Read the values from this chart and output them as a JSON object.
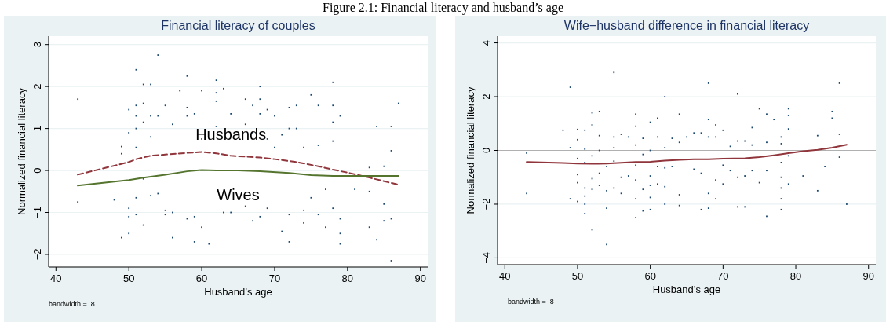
{
  "chart_data": [
    {
      "type": "line",
      "title": "Financial literacy of couples",
      "xlabel": "Husband’s age",
      "ylabel": "Normalized financial literacy",
      "annotations": [
        "Figure 2.1: Financial literacy and husband’s age",
        "bandwidth = .8"
      ],
      "xlim": [
        39,
        91
      ],
      "xticks": [
        40,
        50,
        60,
        70,
        80,
        90
      ],
      "ylim": [
        -2.3,
        3.2
      ],
      "yticks": [
        -2,
        -1,
        0,
        1,
        2,
        3
      ],
      "grid": "y",
      "series": [
        {
          "type": "scatter",
          "marker": "square",
          "color": "#1a476f",
          "x": [
            43,
            43,
            48,
            49,
            49,
            49,
            50,
            50,
            50,
            50,
            50,
            51,
            51,
            51,
            51,
            51,
            51,
            51,
            52,
            52,
            52,
            52,
            52,
            53,
            53,
            53,
            53,
            54,
            54,
            54,
            55,
            55,
            55,
            56,
            56,
            56,
            57,
            58,
            58,
            58,
            58,
            59,
            59,
            59,
            60,
            60,
            60,
            61,
            62,
            62,
            62,
            62,
            63,
            63,
            64,
            64,
            66,
            66,
            66,
            67,
            67,
            67,
            68,
            68,
            68,
            68,
            69,
            69,
            69,
            70,
            70,
            71,
            71,
            72,
            72,
            72,
            72,
            73,
            73,
            74,
            74,
            74,
            75,
            75,
            76,
            76,
            76,
            77,
            77,
            78,
            78,
            78,
            78,
            78,
            79,
            79,
            79,
            79,
            81,
            83,
            83,
            83,
            84,
            84,
            85,
            85,
            85,
            86,
            86,
            86,
            86,
            87
          ],
          "values": [
            1.7,
            -0.75,
            -0.7,
            -1.6,
            0.57,
            0.4,
            1.45,
            0.9,
            -0.9,
            -1.1,
            -1.5,
            2.4,
            1.55,
            1.3,
            1.0,
            0.55,
            -0.65,
            -1.05,
            2.05,
            1.6,
            1.15,
            -1.3,
            -0.2,
            2.05,
            1.3,
            0.8,
            -0.6,
            2.75,
            1.3,
            -0.55,
            1.55,
            -0.95,
            -1.05,
            1.1,
            -1.6,
            -1.0,
            1.9,
            2.25,
            1.5,
            1.3,
            -1.15,
            1.35,
            -1.1,
            -1.7,
            1.9,
            0.75,
            -1.35,
            -1.75,
            2.15,
            1.85,
            1.65,
            1.05,
            1.95,
            -1.0,
            1.35,
            -1.0,
            1.7,
            1.1,
            -0.85,
            1.55,
            0.9,
            -1.2,
            2.0,
            1.7,
            1.35,
            -1.1,
            1.45,
            0.75,
            -0.9,
            1.3,
            0.55,
            0.85,
            -1.45,
            1.5,
            1.0,
            -1.05,
            -1.7,
            1.55,
            1.0,
            0.55,
            -0.95,
            -1.25,
            1.8,
            -0.65,
            1.55,
            0.6,
            -1.05,
            -0.45,
            -1.35,
            2.1,
            1.55,
            1.15,
            0.7,
            -0.9,
            1.3,
            -1.15,
            -1.5,
            -1.75,
            -0.45,
            0.07,
            -0.5,
            -1.35,
            1.05,
            -1.65,
            0.1,
            -0.8,
            -1.2,
            1.05,
            0.47,
            -1.15,
            -2.15,
            1.6
          ]
        },
        {
          "type": "line",
          "name": "Husbands",
          "color": "#90353b",
          "line_style": "dashed",
          "x": [
            43,
            50,
            51,
            53,
            55,
            58,
            60,
            62,
            64,
            68,
            70,
            73,
            76,
            78,
            80,
            83,
            87
          ],
          "values": [
            -0.1,
            0.2,
            0.27,
            0.35,
            0.38,
            0.42,
            0.44,
            0.41,
            0.35,
            0.31,
            0.27,
            0.2,
            0.1,
            0.02,
            -0.05,
            -0.17,
            -0.34
          ]
        },
        {
          "type": "line",
          "name": "Wives",
          "color": "#55752f",
          "line_style": "solid",
          "x": [
            43,
            50,
            52,
            55,
            58,
            60,
            62,
            65,
            68,
            72,
            75,
            78,
            83,
            87
          ],
          "values": [
            -0.36,
            -0.23,
            -0.17,
            -0.1,
            -0.02,
            0.01,
            0.0,
            0.0,
            -0.02,
            -0.06,
            -0.11,
            -0.13,
            -0.13,
            -0.13
          ]
        }
      ]
    },
    {
      "type": "line",
      "title": "Wife−husband difference in financial literacy",
      "xlabel": "Husband’s age",
      "ylabel": "Normalized financial literacy",
      "annotations": [
        "bandwidth = .8"
      ],
      "xlim": [
        39,
        91
      ],
      "xticks": [
        40,
        50,
        60,
        70,
        80,
        90
      ],
      "ylim": [
        -4.25,
        4.25
      ],
      "yticks": [
        -4,
        -2,
        0,
        2,
        4
      ],
      "grid": "y",
      "ref_lines": [
        {
          "axis": "y",
          "value": 0,
          "color": "#b0b0b0"
        }
      ],
      "series": [
        {
          "type": "scatter",
          "marker": "square",
          "color": "#1a476f",
          "x": [
            43,
            43,
            48,
            49,
            49,
            49,
            50,
            50,
            50,
            50,
            50,
            50,
            51,
            51,
            51,
            51,
            51,
            51,
            51,
            52,
            52,
            52,
            52,
            52,
            52,
            53,
            53,
            53,
            53,
            53,
            54,
            54,
            54,
            54,
            55,
            55,
            55,
            55,
            55,
            56,
            56,
            56,
            57,
            57,
            58,
            58,
            58,
            58,
            58,
            58,
            58,
            59,
            59,
            59,
            59,
            60,
            60,
            60,
            60,
            60,
            60,
            61,
            61,
            61,
            61,
            62,
            62,
            62,
            62,
            62,
            63,
            63,
            64,
            64,
            64,
            64,
            65,
            66,
            66,
            67,
            67,
            67,
            68,
            68,
            68,
            68,
            68,
            69,
            69,
            69,
            69,
            70,
            70,
            70,
            71,
            71,
            72,
            72,
            72,
            72,
            73,
            73,
            73,
            74,
            74,
            74,
            75,
            75,
            76,
            76,
            76,
            76,
            77,
            78,
            78,
            78,
            78,
            78,
            78,
            78,
            79,
            79,
            79,
            79,
            79,
            81,
            83,
            83,
            84,
            85,
            85,
            86,
            86,
            86,
            87
          ],
          "values": [
            -0.1,
            -1.6,
            0.75,
            2.35,
            0.1,
            -1.8,
            0.78,
            0.4,
            -0.3,
            -0.9,
            -1.2,
            -1.9,
            0.75,
            0.05,
            -0.45,
            -1.4,
            -1.7,
            -2.0,
            -2.35,
            1.4,
            0.95,
            -0.2,
            -1.05,
            -1.45,
            -2.95,
            1.45,
            0.55,
            0.0,
            -0.85,
            -1.3,
            -0.6,
            -1.5,
            -2.15,
            -3.5,
            2.9,
            0.5,
            0.1,
            -0.4,
            -1.4,
            0.6,
            -1.0,
            -1.6,
            0.5,
            -0.95,
            1.35,
            0.9,
            0.2,
            -0.55,
            -1.1,
            -1.8,
            -2.5,
            0.45,
            -0.15,
            -1.45,
            -2.25,
            1.05,
            0.0,
            -0.95,
            -1.3,
            -1.75,
            -2.2,
            1.2,
            0.5,
            -0.6,
            -1.25,
            2.0,
            0.1,
            -0.65,
            -1.35,
            -2.0,
            0.45,
            -0.6,
            1.35,
            0.3,
            -1.65,
            -2.05,
            0.5,
            0.65,
            -0.7,
            0.65,
            -0.85,
            -2.2,
            2.5,
            1.15,
            0.5,
            -1.6,
            -2.15,
            0.95,
            0.5,
            -1.1,
            -1.8,
            0.75,
            -0.55,
            -1.25,
            0.15,
            -0.75,
            2.1,
            0.35,
            -1.0,
            -2.1,
            0.35,
            -0.95,
            -2.1,
            0.85,
            0.2,
            -0.75,
            1.55,
            -1.2,
            1.35,
            0.3,
            -0.75,
            -2.45,
            1.15,
            0.5,
            0.25,
            -0.45,
            -1.0,
            -1.4,
            -1.8,
            -2.2,
            1.55,
            1.3,
            0.8,
            -0.2,
            -1.25,
            -0.95,
            0.55,
            -1.5,
            -0.6,
            1.45,
            1.2,
            2.5,
            0.6,
            -0.25,
            -2.0
          ]
        },
        {
          "type": "line",
          "color": "#90353b",
          "line_style": "solid",
          "x": [
            43,
            48,
            50,
            52,
            54,
            56,
            58,
            60,
            62,
            64,
            66,
            68,
            70,
            73,
            75,
            77,
            79,
            81,
            83,
            85,
            87
          ],
          "values": [
            -0.43,
            -0.47,
            -0.49,
            -0.5,
            -0.49,
            -0.46,
            -0.43,
            -0.42,
            -0.38,
            -0.35,
            -0.33,
            -0.33,
            -0.31,
            -0.29,
            -0.25,
            -0.18,
            -0.1,
            -0.03,
            0.02,
            0.1,
            0.21
          ]
        }
      ]
    }
  ]
}
